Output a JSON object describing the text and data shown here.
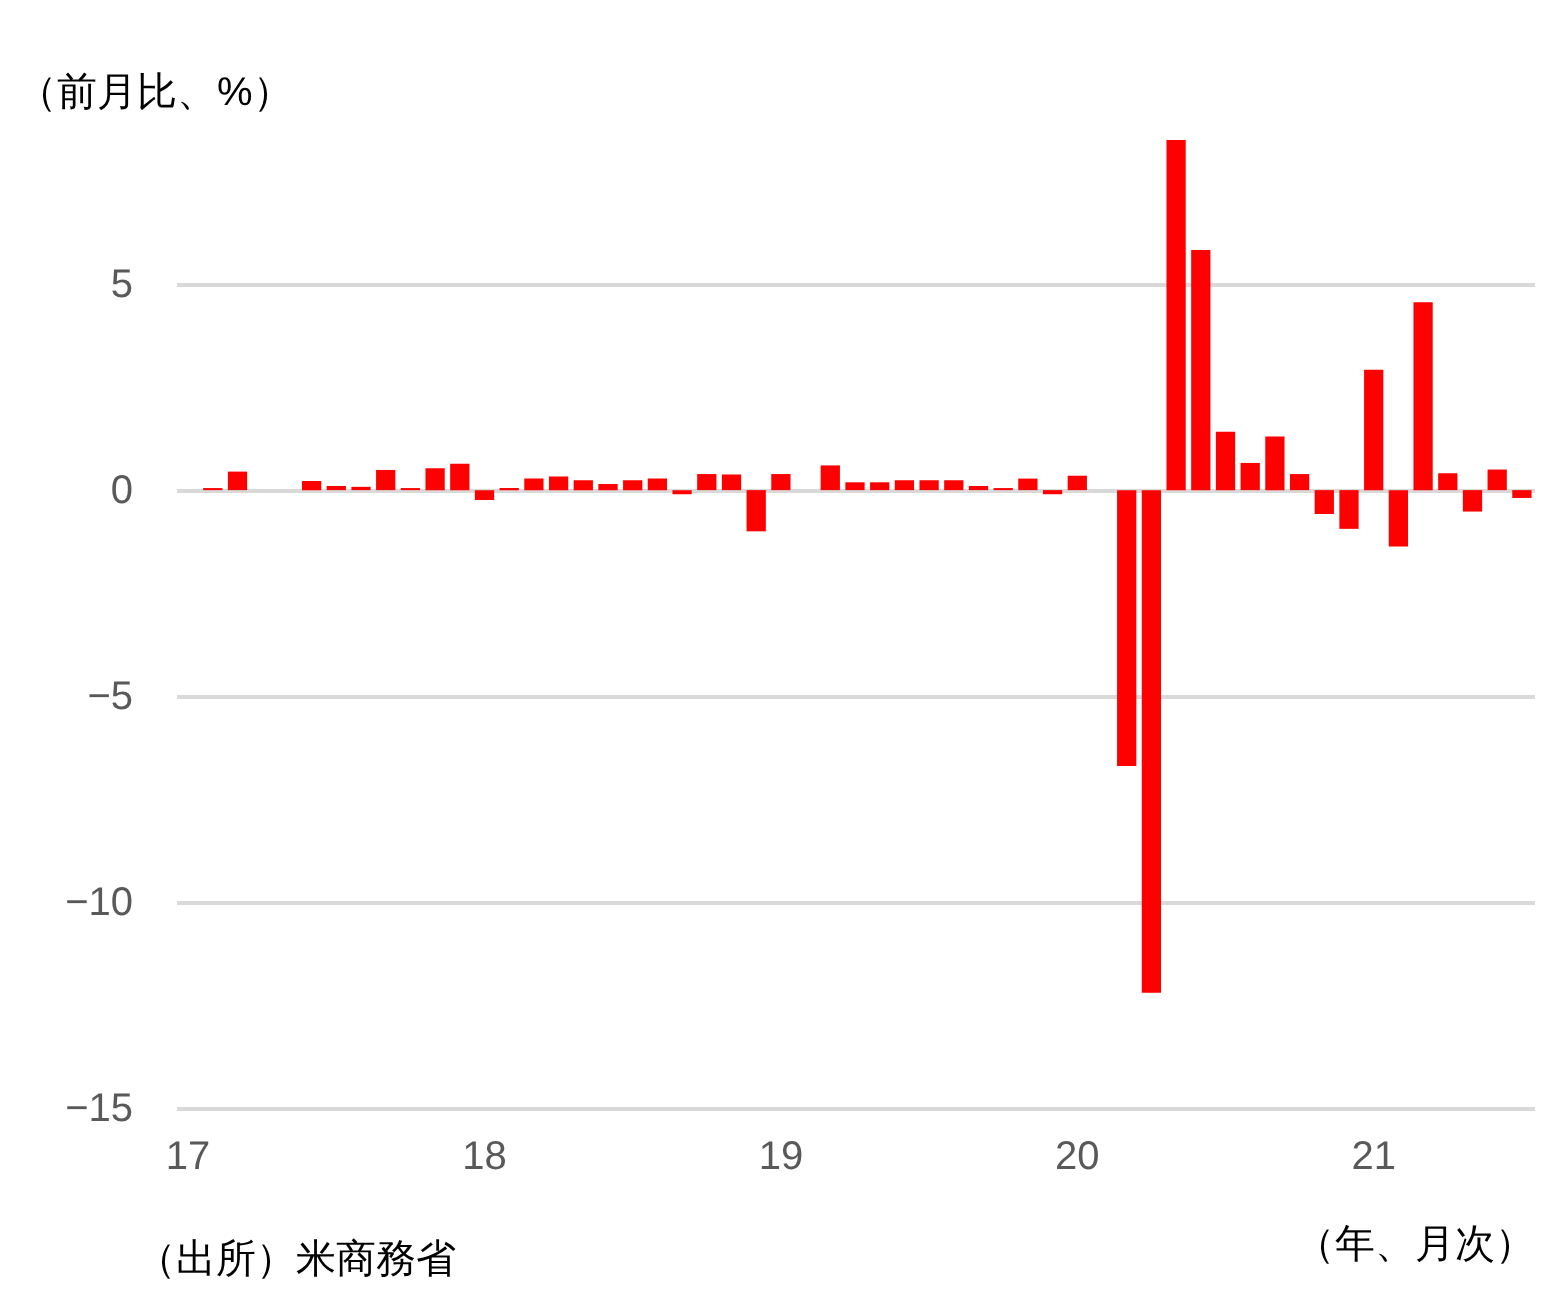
{
  "chart_data": {
    "type": "bar",
    "ylabel": "（前月比、%）",
    "xlabel": "（年、月次）",
    "annotations": [
      "（出所）米商務省"
    ],
    "categories": [
      "17",
      null,
      null,
      null,
      null,
      null,
      null,
      null,
      null,
      null,
      null,
      null,
      "18",
      null,
      null,
      null,
      null,
      null,
      null,
      null,
      null,
      null,
      null,
      null,
      "19",
      null,
      null,
      null,
      null,
      null,
      null,
      null,
      null,
      null,
      null,
      null,
      "20",
      null,
      null,
      null,
      null,
      null,
      null,
      null,
      null,
      null,
      null,
      null,
      "21",
      null,
      null,
      null,
      null,
      null,
      null
    ],
    "values": [
      0,
      0.05,
      0.45,
      0,
      0,
      0.22,
      0.1,
      0.08,
      0.49,
      0.05,
      0.53,
      0.64,
      -0.24,
      0.05,
      0.28,
      0.33,
      0.24,
      0.15,
      0.24,
      0.28,
      -0.1,
      0.39,
      0.38,
      -1.0,
      0.39,
      0,
      0.6,
      0.19,
      0.19,
      0.24,
      0.24,
      0.24,
      0.1,
      0.05,
      0.28,
      -0.1,
      0.35,
      0,
      -6.7,
      -12.2,
      8.5,
      5.83,
      1.42,
      0.66,
      1.3,
      0.39,
      -0.58,
      -0.94,
      2.92,
      -1.37,
      4.56,
      0.41,
      -0.52,
      0.5,
      -0.19
    ],
    "color": "#ff0000",
    "ylim": [
      -15,
      8.5
    ],
    "yticks": [
      -15,
      -10,
      -5,
      0,
      5
    ],
    "grid": "y"
  }
}
